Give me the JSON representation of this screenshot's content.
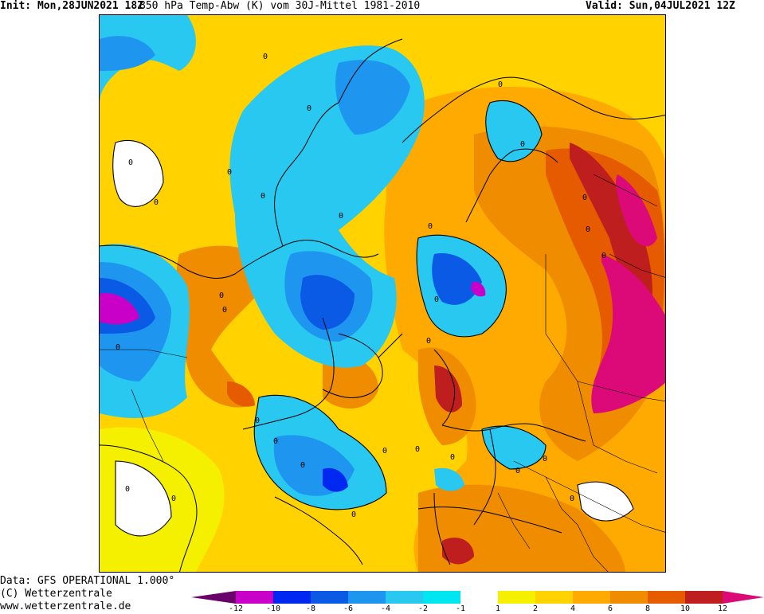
{
  "header": {
    "init_label": "Init:",
    "init_value": "Mon,28JUN2021 18Z",
    "description": "850 hPa Temp-Abw (K) vom 30J-Mittel 1981-2010",
    "valid_label": "Valid:",
    "valid_value": "Sun,04JUL2021 12Z"
  },
  "footer": {
    "line1": "Data: GFS OPERATIONAL 1.000°",
    "line2": "(C) Wetterzentrale",
    "line3": "www.wetterzentrale.de"
  },
  "colorbar": {
    "labels": [
      "-12",
      "-10",
      "-8",
      "-6",
      "-4",
      "-2",
      "-1",
      "1",
      "2",
      "4",
      "6",
      "8",
      "10",
      "12"
    ],
    "colors": {
      "minus12": "#6a006a",
      "minus10": "#c800c8",
      "minus8": "#0028f0",
      "minus6": "#0a5ae6",
      "minus4": "#1e96f0",
      "minus2": "#28c8f0",
      "minus1": "#00e6f0",
      "neutral": "#ffffff",
      "plus1": "#f5f000",
      "plus2": "#ffd200",
      "plus4": "#ffaa00",
      "plus6": "#f08c00",
      "plus8": "#e65a00",
      "plus10": "#be1e1e",
      "plus12": "#dc0a78"
    }
  },
  "map": {
    "contour_labels": [
      "0",
      "0",
      "0",
      "0",
      "0",
      "0",
      "0",
      "0",
      "0",
      "0",
      "0",
      "0",
      "0",
      "0",
      "0",
      "0",
      "0",
      "0",
      "0",
      "0",
      "0",
      "0",
      "0",
      "0",
      "0",
      "0",
      "0",
      "0",
      "0",
      "0"
    ]
  }
}
